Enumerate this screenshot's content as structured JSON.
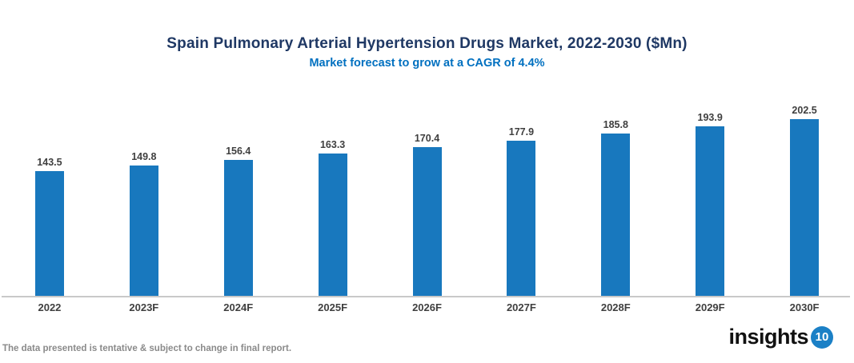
{
  "header": {
    "title": "Spain Pulmonary Arterial Hypertension Drugs Market, 2022-2030 ($Mn)",
    "subtitle": "Market forecast to grow at a CAGR of 4.4%"
  },
  "chart_data": {
    "type": "bar",
    "categories": [
      "2022",
      "2023F",
      "2024F",
      "2025F",
      "2026F",
      "2027F",
      "2028F",
      "2029F",
      "2030F"
    ],
    "values": [
      143.5,
      149.8,
      156.4,
      163.3,
      170.4,
      177.9,
      185.8,
      193.9,
      202.5
    ],
    "title": "Spain Pulmonary Arterial Hypertension Drugs Market, 2022-2030 ($Mn)",
    "subtitle": "Market forecast to grow at a CAGR of 4.4%",
    "xlabel": "",
    "ylabel": "",
    "ylim": [
      0,
      220
    ],
    "grid": false,
    "legend": false,
    "data_labels": true,
    "bar_color": "#1878be"
  },
  "footer": {
    "disclaimer": "The data presented is tentative & subject to change in final report."
  },
  "logo": {
    "text": "insights",
    "badge": "10"
  },
  "colors": {
    "bar": "#1878be",
    "title": "#1f3864",
    "subtitle": "#0070c0",
    "axis_line": "#c9c9c9",
    "data_label": "#3f3f3f",
    "footer_text": "#8a8a8a",
    "logo_badge": "#1b80c6"
  }
}
